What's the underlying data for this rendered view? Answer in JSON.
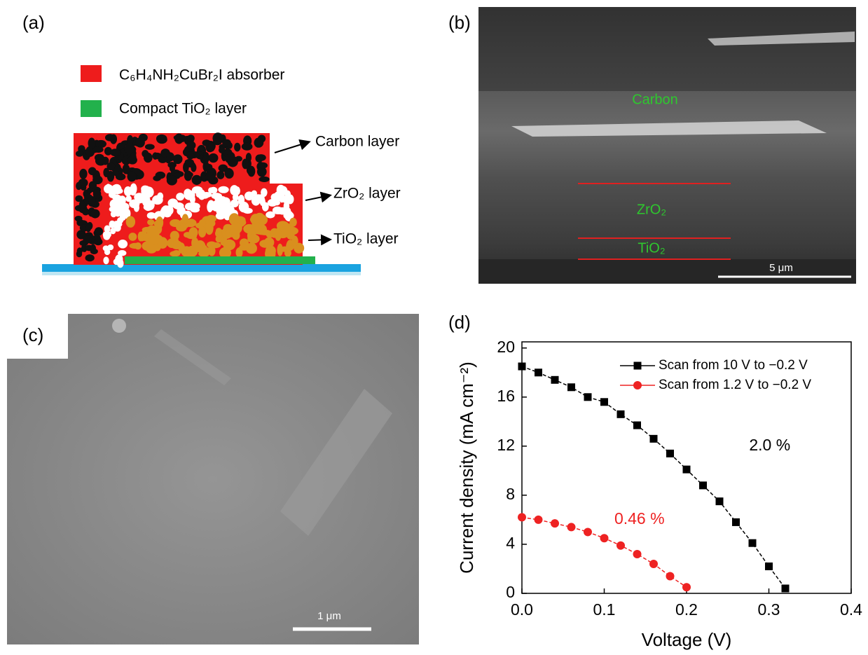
{
  "panel_labels": [
    "(a)",
    "(b)",
    "(c)",
    "(d)"
  ],
  "schematic": {
    "legend": [
      "C₆H₄NH₂CuBr₂I absorber",
      "Compact TiO₂ layer"
    ],
    "layers": [
      "Carbon layer",
      "ZrO₂ layer",
      "TiO₂ layer"
    ]
  },
  "sem_cross_section": {
    "labels": [
      "Carbon",
      "ZrO₂",
      "TiO₂"
    ],
    "scale_bar": "5 μm"
  },
  "sem_surface": {
    "scale_bar": "1 μm"
  },
  "chart_data": {
    "type": "line",
    "x_label": "Voltage (V)",
    "y_label": "Current density (mA cm⁻²)",
    "xlim": [
      0,
      0.4
    ],
    "ylim": [
      0,
      20.5
    ],
    "xticks": [
      {
        "value": 0,
        "label": "0.0"
      },
      0.1,
      0.2,
      0.3,
      0.4
    ],
    "yticks": [
      0,
      4,
      8,
      12,
      16,
      20
    ],
    "legend": "upper right",
    "series": [
      {
        "name": "Scan from 10 V to −0.2 V",
        "color": "#000000",
        "marker": "square",
        "x": [
          0,
          0.02,
          0.04,
          0.06,
          0.08,
          0.1,
          0.12,
          0.14,
          0.16,
          0.18,
          0.2,
          0.22,
          0.24,
          0.26,
          0.28,
          0.3,
          0.32
        ],
        "values": [
          18.5,
          18.0,
          17.4,
          16.8,
          16.0,
          15.6,
          14.6,
          13.7,
          12.6,
          11.4,
          10.1,
          8.8,
          7.5,
          5.8,
          4.1,
          2.2,
          0.4
        ]
      },
      {
        "name": "Scan from 1.2 V to −0.2 V",
        "color": "#ee2222",
        "marker": "circle",
        "x": [
          0,
          0.02,
          0.04,
          0.06,
          0.08,
          0.1,
          0.12,
          0.14,
          0.16,
          0.18,
          0.2
        ],
        "values": [
          6.2,
          6.0,
          5.7,
          5.4,
          5.0,
          4.5,
          3.9,
          3.2,
          2.4,
          1.4,
          0.5
        ]
      }
    ],
    "annotations": [
      {
        "text": "2.0 %",
        "color": "#000000"
      },
      {
        "text": "0.46 %",
        "color": "#ee2222"
      }
    ]
  }
}
